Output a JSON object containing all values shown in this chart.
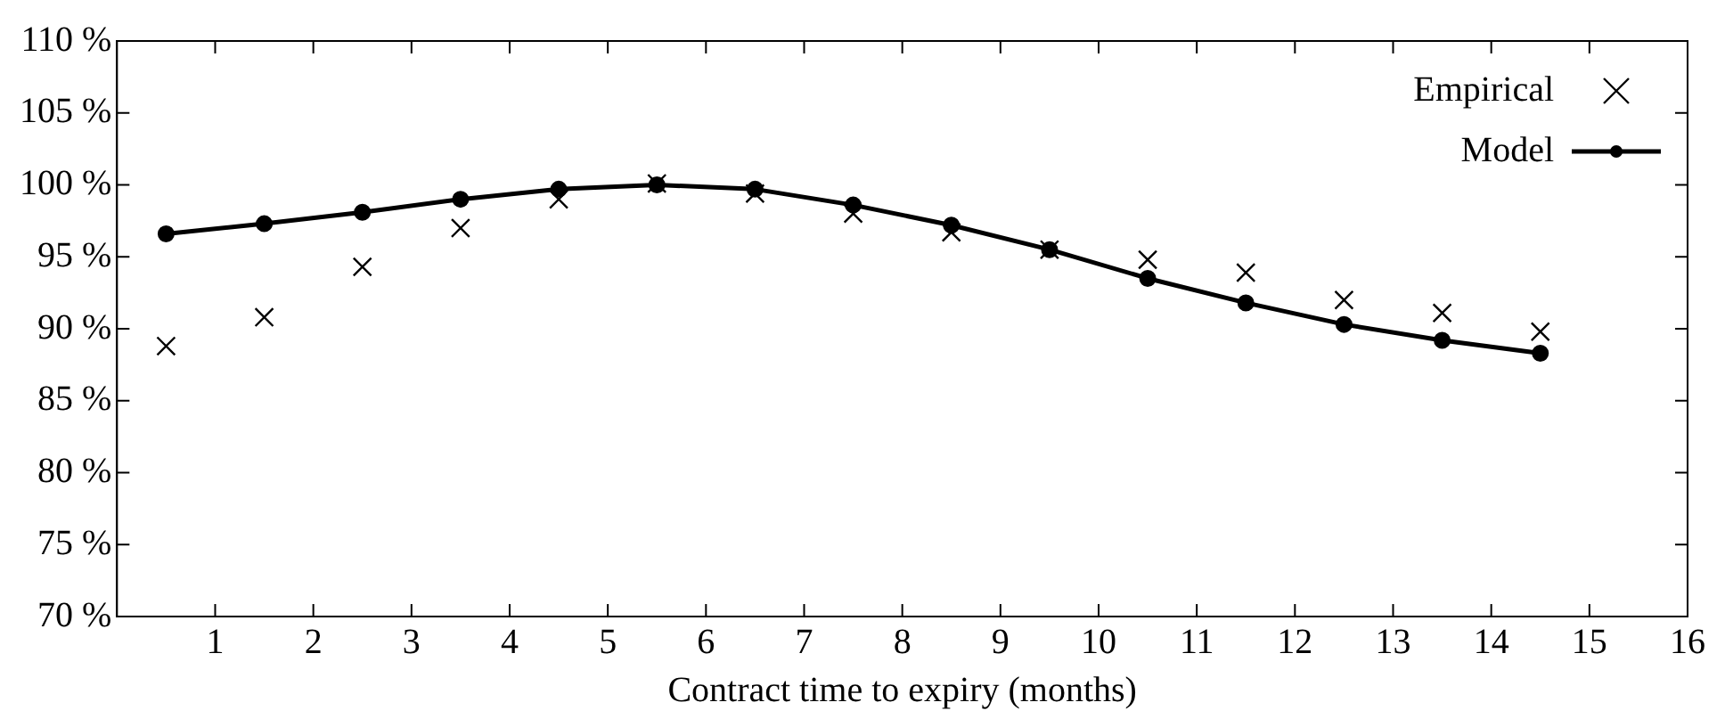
{
  "chart_data": {
    "type": "line",
    "xlabel": "Contract time to expiry (months)",
    "x": [
      0.5,
      1.5,
      2.5,
      3.5,
      4.5,
      5.5,
      6.5,
      7.5,
      8.5,
      9.5,
      10.5,
      11.5,
      12.5,
      13.5,
      14.5
    ],
    "series": [
      {
        "name": "Empirical",
        "type": "scatter",
        "marker": "cross",
        "color": "#000000",
        "values": [
          88.8,
          90.8,
          94.3,
          97.0,
          99.0,
          100.1,
          99.4,
          98.0,
          96.7,
          95.5,
          94.8,
          93.9,
          92.0,
          91.1,
          89.8
        ]
      },
      {
        "name": "Model",
        "type": "line",
        "marker": "circle",
        "line_style": "solid",
        "color": "#000000",
        "values": [
          96.6,
          97.3,
          98.1,
          99.0,
          99.7,
          100.0,
          99.7,
          98.6,
          97.2,
          95.5,
          93.5,
          91.8,
          90.3,
          89.2,
          88.3
        ]
      }
    ],
    "xlim": [
      0,
      16
    ],
    "xticks": [
      1,
      2,
      3,
      4,
      5,
      6,
      7,
      8,
      9,
      10,
      11,
      12,
      13,
      14,
      15,
      16
    ],
    "ylim": [
      70,
      110
    ],
    "yticks": [
      {
        "value": 70,
        "label": "70 %"
      },
      {
        "value": 75,
        "label": "75 %"
      },
      {
        "value": 80,
        "label": "80 %"
      },
      {
        "value": 85,
        "label": "85 %"
      },
      {
        "value": 90,
        "label": "90 %"
      },
      {
        "value": 95,
        "label": "95 %"
      },
      {
        "value": 100,
        "label": "100 %"
      },
      {
        "value": 105,
        "label": "105 %"
      },
      {
        "value": 110,
        "label": "110 %"
      }
    ],
    "grid": false,
    "legend": "top right"
  }
}
